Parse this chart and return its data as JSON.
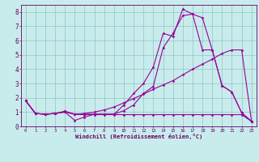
{
  "xlabel": "Windchill (Refroidissement éolien,°C)",
  "bg_color": "#c8ecec",
  "line_color": "#990099",
  "grid_color": "#8fbfbf",
  "xlim": [
    -0.5,
    23.5
  ],
  "ylim": [
    0,
    8.5
  ],
  "xticks": [
    0,
    1,
    2,
    3,
    4,
    5,
    6,
    7,
    8,
    9,
    10,
    11,
    12,
    13,
    14,
    15,
    16,
    17,
    18,
    19,
    20,
    21,
    22,
    23
  ],
  "yticks": [
    0,
    1,
    2,
    3,
    4,
    5,
    6,
    7,
    8
  ],
  "lines": [
    {
      "x": [
        0,
        1,
        2,
        3,
        4,
        5,
        6,
        7,
        8,
        9,
        10,
        11,
        12,
        13,
        14,
        15,
        16,
        17,
        18,
        19,
        20,
        21,
        22,
        23
      ],
      "y": [
        1.8,
        0.9,
        0.85,
        0.9,
        1.0,
        0.42,
        0.65,
        0.85,
        0.85,
        0.85,
        1.5,
        2.3,
        3.0,
        4.15,
        6.5,
        6.3,
        8.2,
        7.85,
        7.6,
        5.35,
        2.85,
        2.4,
        0.95,
        0.35
      ]
    },
    {
      "x": [
        0,
        1,
        2,
        3,
        4,
        5,
        6,
        7,
        8,
        9,
        10,
        11,
        12,
        13,
        14,
        15,
        16,
        17,
        18,
        19,
        20,
        21,
        22,
        23
      ],
      "y": [
        1.8,
        0.9,
        0.85,
        0.9,
        1.0,
        0.85,
        0.85,
        0.85,
        0.85,
        0.85,
        1.1,
        1.5,
        2.3,
        2.8,
        5.5,
        6.5,
        7.75,
        7.85,
        5.35,
        5.35,
        2.85,
        2.4,
        0.95,
        0.35
      ]
    },
    {
      "x": [
        0,
        1,
        2,
        3,
        4,
        5,
        6,
        7,
        8,
        9,
        10,
        11,
        12,
        13,
        14,
        15,
        16,
        17,
        18,
        19,
        20,
        21,
        22,
        23
      ],
      "y": [
        1.8,
        0.9,
        0.85,
        0.9,
        1.05,
        0.85,
        0.82,
        0.82,
        0.82,
        0.82,
        0.82,
        0.82,
        0.82,
        0.82,
        0.82,
        0.82,
        0.82,
        0.82,
        0.82,
        0.82,
        0.82,
        0.82,
        0.82,
        0.35
      ]
    },
    {
      "x": [
        0,
        1,
        2,
        3,
        4,
        5,
        6,
        7,
        8,
        9,
        10,
        11,
        12,
        13,
        14,
        15,
        16,
        17,
        18,
        19,
        20,
        21,
        22,
        23
      ],
      "y": [
        1.8,
        0.9,
        0.85,
        0.9,
        1.05,
        0.85,
        0.9,
        1.0,
        1.15,
        1.35,
        1.65,
        1.95,
        2.25,
        2.6,
        2.9,
        3.2,
        3.6,
        4.0,
        4.35,
        4.7,
        5.1,
        5.35,
        5.35,
        0.35
      ]
    }
  ]
}
